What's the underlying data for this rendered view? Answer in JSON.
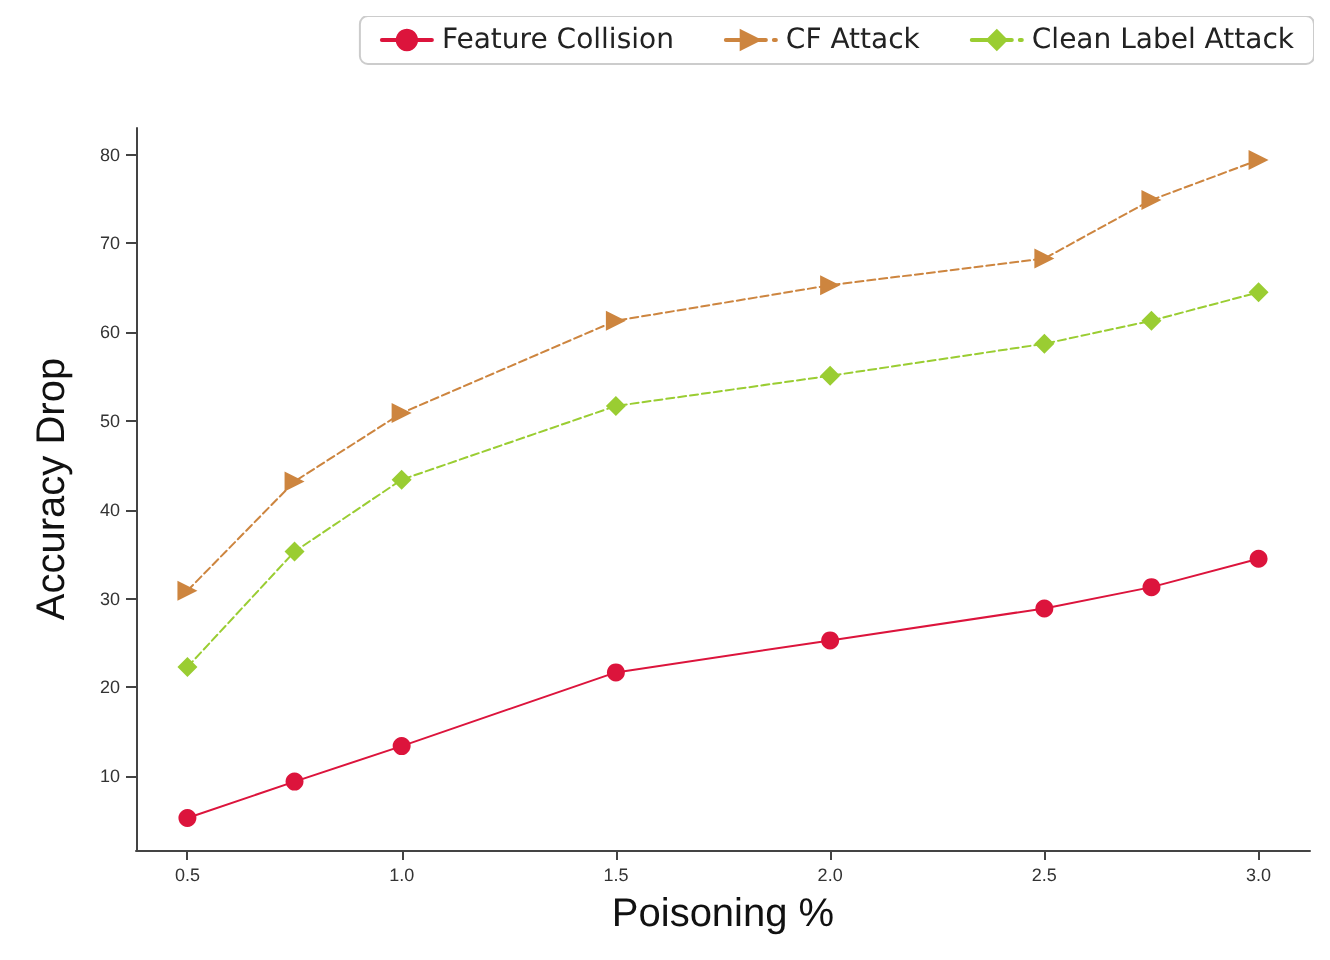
{
  "chart_data": {
    "type": "line",
    "xlabel": "Poisoning %",
    "ylabel": "Accuracy Drop",
    "x": [
      0.5,
      0.75,
      1.0,
      1.5,
      2.0,
      2.5,
      2.75,
      3.0
    ],
    "series": [
      {
        "name": "Feature Collision",
        "color": "#dc143c",
        "marker": "circle",
        "line_style": "solid",
        "values": [
          5.3,
          9.4,
          13.4,
          21.7,
          25.3,
          28.9,
          31.3,
          34.5
        ]
      },
      {
        "name": "CF Attack",
        "color": "#cd853f",
        "marker": "triangle",
        "line_style": "dashed",
        "values": [
          30.9,
          43.2,
          50.9,
          61.3,
          65.3,
          68.3,
          74.9,
          79.4
        ]
      },
      {
        "name": "Clean Label Attack",
        "color": "#9acd32",
        "marker": "diamond",
        "line_style": "dashed",
        "values": [
          22.3,
          35.3,
          43.4,
          51.7,
          55.1,
          58.7,
          61.3,
          64.5
        ]
      }
    ],
    "xlim": [
      0.38,
      3.12
    ],
    "ylim": [
      1.7,
      83
    ],
    "xticks": [
      {
        "value": 0.5,
        "label": "0.5"
      },
      {
        "value": 1.0,
        "label": "1.0"
      },
      {
        "value": 1.5,
        "label": "1.5"
      },
      {
        "value": 2.0,
        "label": "2.0"
      },
      {
        "value": 2.5,
        "label": "2.5"
      },
      {
        "value": 3.0,
        "label": "3.0"
      }
    ],
    "yticks": [
      10,
      20,
      30,
      40,
      50,
      60,
      70,
      80
    ],
    "grid": false,
    "legend": "top right"
  }
}
